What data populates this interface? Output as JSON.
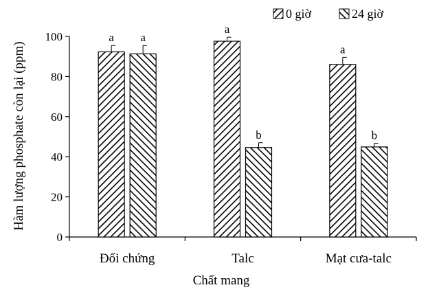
{
  "chart_data": {
    "type": "bar",
    "xlabel": "Chất mang",
    "ylabel": "Hàm lượng phosphate còn lại (ppm)",
    "ylim": [
      0,
      100
    ],
    "yticks": [
      0,
      20,
      40,
      60,
      80,
      100
    ],
    "grid": false,
    "legend_position": "top-right",
    "categories": [
      "Đối chứng",
      "Talc",
      "Mạt cưa-talc"
    ],
    "series": [
      {
        "name": "0 giờ",
        "pattern": "backward-diagonal-hatch",
        "values": [
          92.3,
          97.6,
          86.0
        ],
        "errors": [
          3.2,
          2.0,
          3.6
        ],
        "labels": [
          "a",
          "a",
          "a"
        ]
      },
      {
        "name": "24 giờ",
        "pattern": "forward-diagonal-hatch",
        "values": [
          91.3,
          44.6,
          44.9
        ],
        "errors": [
          4.2,
          2.4,
          1.8
        ],
        "labels": [
          "a",
          "b",
          "b"
        ]
      }
    ]
  }
}
